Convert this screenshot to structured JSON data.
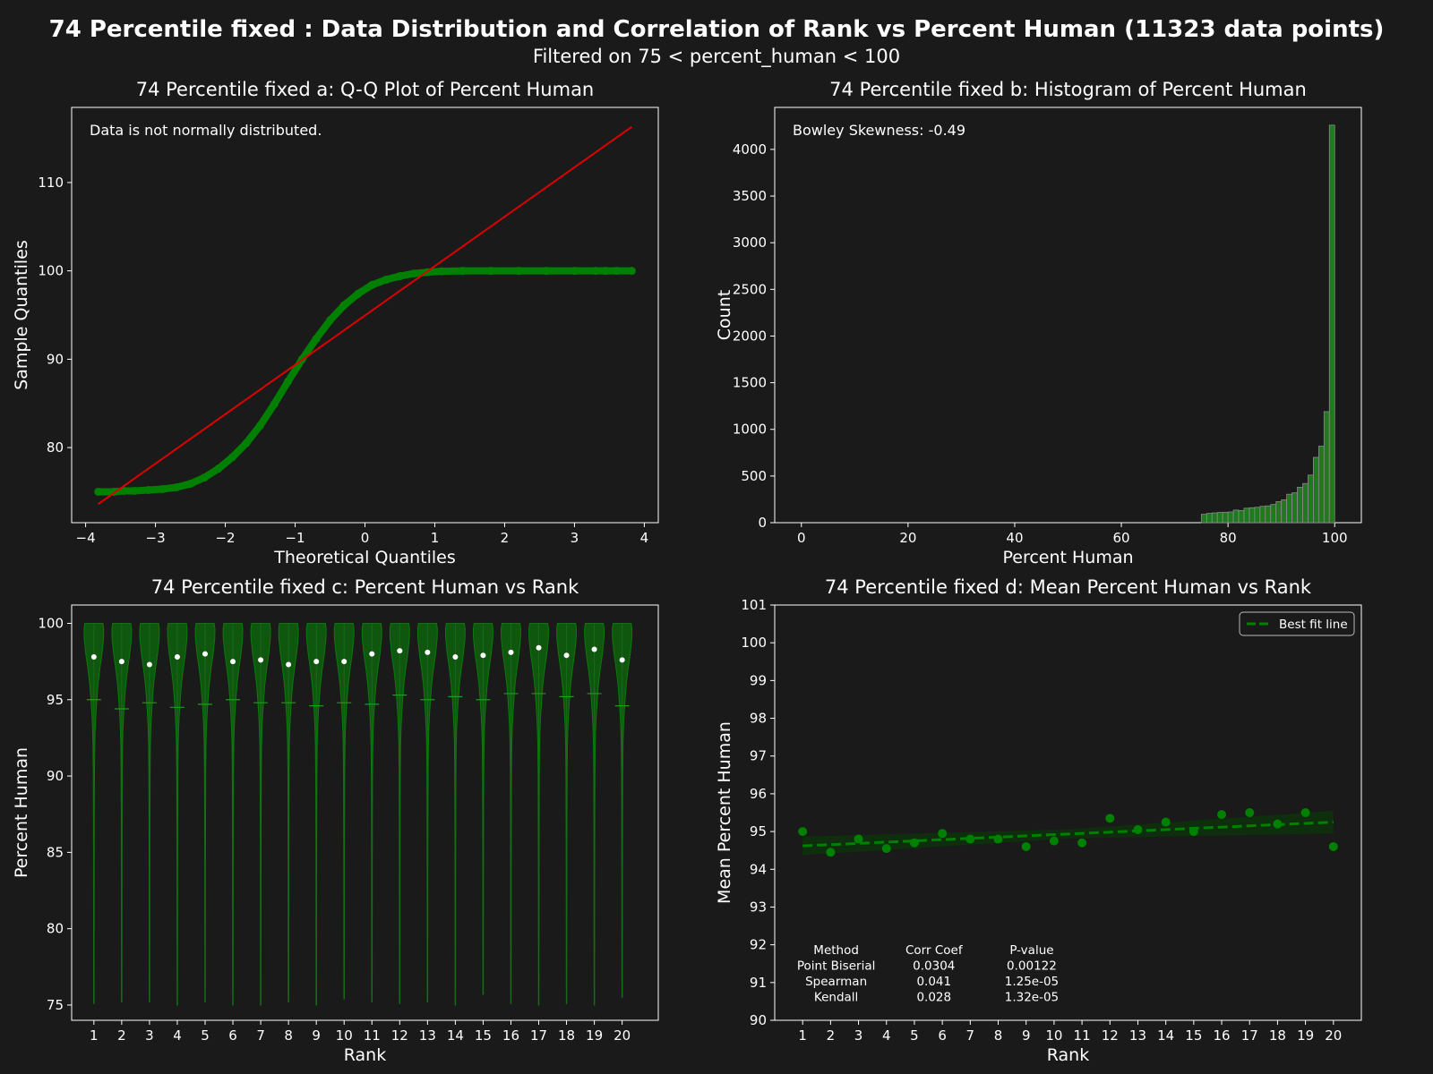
{
  "figure": {
    "title": "74 Percentile fixed : Data Distribution and Correlation of Rank vs Percent Human (11323 data points)",
    "subtitle": "Filtered on 75 < percent_human < 100",
    "colors": {
      "background": "#1a1a1a",
      "green": "#008000",
      "red": "#dd0000",
      "text": "#ffffff"
    }
  },
  "chart_data": [
    {
      "id": "a",
      "type": "scatter",
      "title": "74 Percentile fixed a: Q-Q Plot of Percent Human",
      "xlabel": "Theoretical Quantiles",
      "ylabel": "Sample Quantiles",
      "xlim": [
        -4.2,
        4.2
      ],
      "ylim": [
        71.5,
        118.5
      ],
      "xticks": [
        -4,
        -3,
        -2,
        -1,
        0,
        1,
        2,
        3,
        4
      ],
      "yticks": [
        80,
        90,
        100,
        110
      ],
      "annotation": "Data is not normally distributed.",
      "reference_line": {
        "x": [
          -3.82,
          3.82
        ],
        "y": [
          73.6,
          116.3
        ]
      },
      "points": [
        {
          "x": -3.82,
          "y": 75.0
        },
        {
          "x": -3.6,
          "y": 75.0
        },
        {
          "x": -3.45,
          "y": 75.1
        },
        {
          "x": -3.3,
          "y": 75.1
        },
        {
          "x": -3.1,
          "y": 75.2
        },
        {
          "x": -2.9,
          "y": 75.3
        },
        {
          "x": -2.7,
          "y": 75.5
        },
        {
          "x": -2.5,
          "y": 75.9
        },
        {
          "x": -2.3,
          "y": 76.6
        },
        {
          "x": -2.1,
          "y": 77.6
        },
        {
          "x": -1.9,
          "y": 78.9
        },
        {
          "x": -1.7,
          "y": 80.5
        },
        {
          "x": -1.5,
          "y": 82.5
        },
        {
          "x": -1.3,
          "y": 84.9
        },
        {
          "x": -1.1,
          "y": 87.5
        },
        {
          "x": -0.9,
          "y": 90.0
        },
        {
          "x": -0.7,
          "y": 92.3
        },
        {
          "x": -0.5,
          "y": 94.4
        },
        {
          "x": -0.3,
          "y": 96.1
        },
        {
          "x": -0.1,
          "y": 97.4
        },
        {
          "x": 0.1,
          "y": 98.4
        },
        {
          "x": 0.3,
          "y": 99.0
        },
        {
          "x": 0.5,
          "y": 99.4
        },
        {
          "x": 0.7,
          "y": 99.7
        },
        {
          "x": 0.9,
          "y": 99.85
        },
        {
          "x": 1.1,
          "y": 99.95
        },
        {
          "x": 1.4,
          "y": 100.0
        },
        {
          "x": 1.8,
          "y": 100.0
        },
        {
          "x": 2.2,
          "y": 100.0
        },
        {
          "x": 2.6,
          "y": 100.0
        },
        {
          "x": 3.0,
          "y": 100.0
        },
        {
          "x": 3.3,
          "y": 100.0
        },
        {
          "x": 3.45,
          "y": 100.0
        },
        {
          "x": 3.6,
          "y": 100.0
        },
        {
          "x": 3.82,
          "y": 100.0
        }
      ]
    },
    {
      "id": "b",
      "type": "bar",
      "title": "74 Percentile fixed b: Histogram of Percent Human",
      "xlabel": "Percent Human",
      "ylabel": "Count",
      "xlim": [
        -5,
        105
      ],
      "ylim": [
        0,
        4450
      ],
      "xticks": [
        0,
        20,
        40,
        60,
        80,
        100
      ],
      "yticks": [
        0,
        500,
        1000,
        1500,
        2000,
        2500,
        3000,
        3500,
        4000
      ],
      "annotation": "Bowley Skewness: -0.49",
      "bin_width": 1,
      "bins": [
        {
          "x": 75,
          "count": 90
        },
        {
          "x": 76,
          "count": 100
        },
        {
          "x": 77,
          "count": 105
        },
        {
          "x": 78,
          "count": 110
        },
        {
          "x": 79,
          "count": 112
        },
        {
          "x": 80,
          "count": 115
        },
        {
          "x": 81,
          "count": 135
        },
        {
          "x": 82,
          "count": 130
        },
        {
          "x": 83,
          "count": 155
        },
        {
          "x": 84,
          "count": 160
        },
        {
          "x": 85,
          "count": 165
        },
        {
          "x": 86,
          "count": 175
        },
        {
          "x": 87,
          "count": 180
        },
        {
          "x": 88,
          "count": 195
        },
        {
          "x": 89,
          "count": 225
        },
        {
          "x": 90,
          "count": 245
        },
        {
          "x": 91,
          "count": 305
        },
        {
          "x": 92,
          "count": 320
        },
        {
          "x": 93,
          "count": 380
        },
        {
          "x": 94,
          "count": 420
        },
        {
          "x": 95,
          "count": 510
        },
        {
          "x": 96,
          "count": 700
        },
        {
          "x": 97,
          "count": 820
        },
        {
          "x": 98,
          "count": 1190
        },
        {
          "x": 99,
          "count": 4260
        }
      ]
    },
    {
      "id": "c",
      "type": "violin",
      "title": "74 Percentile fixed c: Percent Human vs Rank",
      "xlabel": "Rank",
      "ylabel": "Percent Human",
      "ylim": [
        74,
        101.2
      ],
      "yticks": [
        75,
        80,
        85,
        90,
        95,
        100
      ],
      "categories": [
        "1",
        "2",
        "3",
        "4",
        "5",
        "6",
        "7",
        "8",
        "9",
        "10",
        "11",
        "12",
        "13",
        "14",
        "15",
        "16",
        "17",
        "18",
        "19",
        "20"
      ],
      "medians": [
        97.8,
        97.5,
        97.3,
        97.8,
        98.0,
        97.5,
        97.6,
        97.3,
        97.5,
        97.5,
        98.0,
        98.2,
        98.1,
        97.8,
        97.9,
        98.1,
        98.4,
        97.9,
        98.3,
        97.6
      ],
      "means": [
        95.0,
        94.4,
        94.8,
        94.5,
        94.7,
        95.0,
        94.8,
        94.8,
        94.6,
        94.8,
        94.7,
        95.3,
        95.0,
        95.2,
        95.0,
        95.4,
        95.4,
        95.2,
        95.4,
        94.6
      ],
      "min": [
        75.1,
        75.2,
        75.2,
        75.0,
        75.2,
        75.0,
        75.0,
        75.2,
        75.0,
        75.4,
        75.2,
        75.1,
        75.2,
        75.0,
        75.7,
        75.1,
        75.0,
        75.1,
        75.0,
        75.5
      ],
      "max": [
        100,
        100,
        100,
        100,
        100,
        100,
        100,
        100,
        100,
        100,
        100,
        100,
        100,
        100,
        100,
        100,
        100,
        100,
        100,
        100
      ]
    },
    {
      "id": "d",
      "type": "scatter",
      "title": "74 Percentile fixed d: Mean Percent Human vs Rank",
      "xlabel": "Rank",
      "ylabel": "Mean Percent Human",
      "xlim": [
        0,
        21
      ],
      "ylim": [
        90,
        101
      ],
      "xticks": [
        1,
        2,
        3,
        4,
        5,
        6,
        7,
        8,
        9,
        10,
        11,
        12,
        13,
        14,
        15,
        16,
        17,
        18,
        19,
        20
      ],
      "yticks": [
        90,
        91,
        92,
        93,
        94,
        95,
        96,
        97,
        98,
        99,
        100,
        101
      ],
      "legend": {
        "label": "Best fit line",
        "placement": "top-right"
      },
      "x": [
        1,
        2,
        3,
        4,
        5,
        6,
        7,
        8,
        9,
        10,
        11,
        12,
        13,
        14,
        15,
        16,
        17,
        18,
        19,
        20
      ],
      "y": [
        95.0,
        94.45,
        94.8,
        94.55,
        94.7,
        94.95,
        94.8,
        94.8,
        94.6,
        94.75,
        94.7,
        95.35,
        95.05,
        95.25,
        95.0,
        95.45,
        95.5,
        95.2,
        95.5,
        94.6
      ],
      "fit_line": {
        "x": [
          1,
          20
        ],
        "y": [
          94.62,
          95.25
        ]
      },
      "table": {
        "headers": [
          "Method",
          "Corr Coef",
          "P-value"
        ],
        "rows": [
          [
            "Point Biserial",
            "0.0304",
            "0.00122"
          ],
          [
            "Spearman",
            "0.041",
            "1.25e-05"
          ],
          [
            "Kendall",
            "0.028",
            "1.32e-05"
          ]
        ]
      }
    }
  ]
}
